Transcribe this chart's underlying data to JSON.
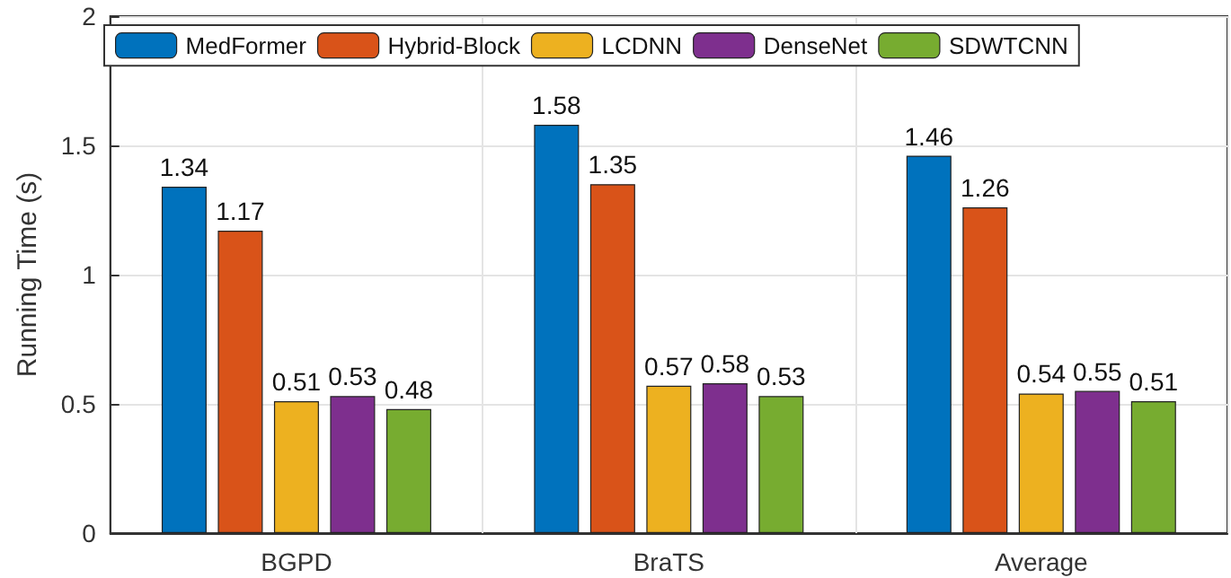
{
  "chart_data": {
    "type": "bar",
    "ylabel": "Running Time (s)",
    "categories": [
      "BGPD",
      "BraTS",
      "Average"
    ],
    "series": [
      {
        "name": "MedFormer",
        "color": "#0072bd",
        "values": [
          1.34,
          1.58,
          1.46
        ]
      },
      {
        "name": "Hybrid-Block",
        "color": "#d95319",
        "values": [
          1.17,
          1.35,
          1.26
        ]
      },
      {
        "name": "LCDNN",
        "color": "#edb120",
        "values": [
          0.51,
          0.57,
          0.54
        ]
      },
      {
        "name": "DenseNet",
        "color": "#7e2f8e",
        "values": [
          0.53,
          0.58,
          0.55
        ]
      },
      {
        "name": "SDWTCNN",
        "color": "#77ac30",
        "values": [
          0.48,
          0.53,
          0.51
        ]
      }
    ],
    "ylim": [
      0,
      2
    ],
    "yticks": [
      0,
      0.5,
      1,
      1.5,
      2
    ],
    "grid": true,
    "legend": "top",
    "data_labels": true
  }
}
